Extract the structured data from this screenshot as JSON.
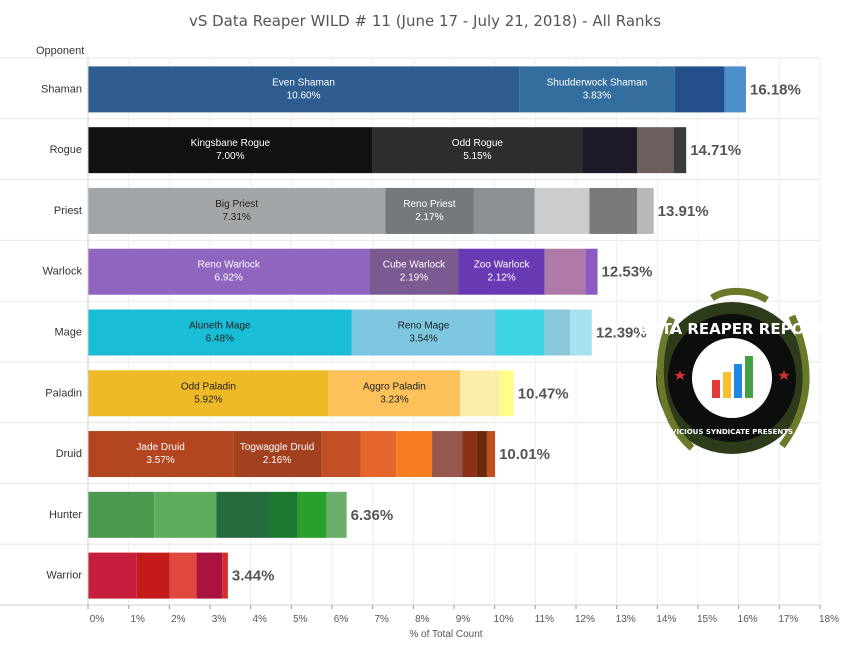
{
  "chart_data": {
    "type": "bar",
    "orientation": "horizontal",
    "stacked": true,
    "title": "vS Data Reaper WILD # 11 (June 17 - July 21, 2018) - All Ranks",
    "ylabel": "Opponent",
    "xlabel": "% of Total Count",
    "xlim": [
      0,
      18
    ],
    "xticks": [
      "0%",
      "1%",
      "2%",
      "3%",
      "4%",
      "5%",
      "6%",
      "7%",
      "8%",
      "9%",
      "10%",
      "11%",
      "12%",
      "13%",
      "14%",
      "15%",
      "16%",
      "17%",
      "18%"
    ],
    "grid": "vertical",
    "categories": [
      {
        "name": "Shaman",
        "total": 16.18,
        "total_label": "16.18%",
        "segments": [
          {
            "value": 10.6,
            "name": "Even Shaman",
            "pct": "10.60%",
            "color": "#2e5e90",
            "text_color": "#ffffff"
          },
          {
            "value": 3.83,
            "name": "Shudderwock Shaman",
            "pct": "3.83%",
            "color": "#336e9e",
            "text_color": "#ffffff"
          },
          {
            "value": 1.22,
            "color": "#22508a"
          },
          {
            "value": 0.53,
            "color": "#4d8fcc"
          }
        ]
      },
      {
        "name": "Rogue",
        "total": 14.71,
        "total_label": "14.71%",
        "segments": [
          {
            "value": 7.0,
            "name": "Kingsbane Rogue",
            "pct": "7.00%",
            "color": "#111111",
            "text_color": "#ffffff"
          },
          {
            "value": 5.15,
            "name": "Odd Rogue",
            "pct": "5.15%",
            "color": "#2e2e2e",
            "text_color": "#ffffff"
          },
          {
            "value": 1.35,
            "color": "#1f1a28"
          },
          {
            "value": 0.9,
            "color": "#6b5f5f"
          },
          {
            "value": 0.31,
            "color": "#3b3b3b"
          }
        ]
      },
      {
        "name": "Priest",
        "total": 13.91,
        "total_label": "13.91%",
        "segments": [
          {
            "value": 7.31,
            "name": "Big Priest",
            "pct": "7.31%",
            "color": "#a2a6a8",
            "text_color": "#222222"
          },
          {
            "value": 2.17,
            "name": "Reno Priest",
            "pct": "2.17%",
            "color": "#74797d",
            "text_color": "#ffffff"
          },
          {
            "value": 1.5,
            "color": "#8c9194"
          },
          {
            "value": 1.35,
            "color": "#cccccc"
          },
          {
            "value": 1.17,
            "color": "#7a7a7a"
          },
          {
            "value": 0.41,
            "color": "#b8b8b8"
          }
        ]
      },
      {
        "name": "Warlock",
        "total": 12.53,
        "total_label": "12.53%",
        "segments": [
          {
            "value": 6.92,
            "name": "Reno Warlock",
            "pct": "6.92%",
            "color": "#9065c0",
            "text_color": "#ffffff"
          },
          {
            "value": 2.19,
            "name": "Cube Warlock",
            "pct": "2.19%",
            "color": "#7a5a90",
            "text_color": "#ffffff"
          },
          {
            "value": 2.12,
            "name": "Zoo Warlock",
            "pct": "2.12%",
            "color": "#6a3ab5",
            "text_color": "#ffffff"
          },
          {
            "value": 1.0,
            "color": "#b07aa8"
          },
          {
            "value": 0.3,
            "color": "#8a5bc2"
          }
        ]
      },
      {
        "name": "Mage",
        "total": 12.39,
        "total_label": "12.39%",
        "segments": [
          {
            "value": 6.48,
            "name": "Aluneth Mage",
            "pct": "6.48%",
            "color": "#19bdd6",
            "text_color": "#222222"
          },
          {
            "value": 3.54,
            "name": "Reno Mage",
            "pct": "3.54%",
            "color": "#7cc6df",
            "text_color": "#222222"
          },
          {
            "value": 1.21,
            "color": "#3fd3e6"
          },
          {
            "value": 0.63,
            "color": "#8cc8dc"
          },
          {
            "value": 0.53,
            "color": "#a6e2ee"
          }
        ]
      },
      {
        "name": "Paladin",
        "total": 10.47,
        "total_label": "10.47%",
        "segments": [
          {
            "value": 5.92,
            "name": "Odd Paladin",
            "pct": "5.92%",
            "color": "#efba28",
            "text_color": "#222222"
          },
          {
            "value": 3.23,
            "name": "Aggro Paladin",
            "pct": "3.23%",
            "color": "#fcc15a",
            "text_color": "#222222"
          },
          {
            "value": 0.97,
            "color": "#faeeaa"
          },
          {
            "value": 0.35,
            "color": "#fffc8a"
          }
        ]
      },
      {
        "name": "Druid",
        "total": 10.01,
        "total_label": "10.01%",
        "segments": [
          {
            "value": 3.57,
            "name": "Jade Druid",
            "pct": "3.57%",
            "color": "#b34520",
            "text_color": "#ffffff"
          },
          {
            "value": 2.16,
            "name": "Togwaggle Druid",
            "pct": "2.16%",
            "color": "#a3401f",
            "text_color": "#ffffff"
          },
          {
            "value": 0.97,
            "color": "#c24f26"
          },
          {
            "value": 0.88,
            "color": "#e5652d"
          },
          {
            "value": 0.88,
            "color": "#f47e20"
          },
          {
            "value": 0.74,
            "color": "#94584f"
          },
          {
            "value": 0.35,
            "color": "#8a3015"
          },
          {
            "value": 0.26,
            "color": "#6a2a10"
          },
          {
            "value": 0.2,
            "color": "#c0501f"
          }
        ]
      },
      {
        "name": "Hunter",
        "total": 6.36,
        "total_label": "6.36%",
        "segments": [
          {
            "value": 1.63,
            "color": "#4a9a50"
          },
          {
            "value": 1.53,
            "color": "#5cae5e"
          },
          {
            "value": 1.29,
            "color": "#266b3e"
          },
          {
            "value": 0.71,
            "color": "#1b7a30"
          },
          {
            "value": 0.71,
            "color": "#2aa02c"
          },
          {
            "value": 0.49,
            "color": "#6ab06a"
          }
        ]
      },
      {
        "name": "Warrior",
        "total": 3.44,
        "total_label": "3.44%",
        "segments": [
          {
            "value": 1.2,
            "color": "#c81e3e"
          },
          {
            "value": 0.81,
            "color": "#c41a1a"
          },
          {
            "value": 0.66,
            "color": "#e0483f"
          },
          {
            "value": 0.63,
            "color": "#a8143e"
          },
          {
            "value": 0.14,
            "color": "#d92d2d"
          }
        ]
      }
    ]
  },
  "logo": {
    "text": "DATA REAPER REPORT",
    "subtext": "VICIOUS SYNDICATE PRESENTS"
  }
}
